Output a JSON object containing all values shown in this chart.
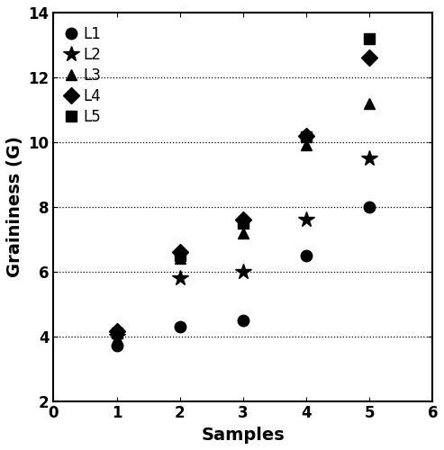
{
  "series": [
    {
      "x": [
        1,
        2,
        3,
        4,
        5
      ],
      "y": [
        3.7,
        4.3,
        4.5,
        6.5,
        8.0
      ],
      "marker": "o",
      "label": "L1"
    },
    {
      "x": [
        1,
        2,
        3,
        4,
        5
      ],
      "y": [
        4.0,
        5.8,
        6.0,
        7.6,
        9.5
      ],
      "marker": "*",
      "label": "L2"
    },
    {
      "x": [
        1,
        2,
        3,
        4,
        5
      ],
      "y": [
        4.2,
        6.4,
        7.2,
        9.9,
        11.2
      ],
      "marker": "^",
      "label": "L3"
    },
    {
      "x": [
        1,
        2,
        3,
        4,
        5
      ],
      "y": [
        4.15,
        6.6,
        7.6,
        10.2,
        12.6
      ],
      "marker": "D",
      "label": "L4"
    },
    {
      "x": [
        1,
        2,
        3,
        4,
        5
      ],
      "y": [
        4.1,
        6.5,
        7.5,
        10.15,
        13.2
      ],
      "marker": "s",
      "label": "L5"
    }
  ],
  "xlim": [
    0,
    6
  ],
  "ylim": [
    2,
    14
  ],
  "xlabel": "Samples",
  "ylabel": "Graininess (G)",
  "xticks": [
    0,
    1,
    2,
    3,
    4,
    5,
    6
  ],
  "yticks": [
    2,
    4,
    6,
    8,
    10,
    12,
    14
  ],
  "grid_yticks": [
    4,
    6,
    8,
    10,
    12
  ],
  "color": "black",
  "markersize": 9,
  "star_markersize": 13,
  "label_fontsize": 14,
  "tick_fontsize": 12,
  "legend_fontsize": 12
}
